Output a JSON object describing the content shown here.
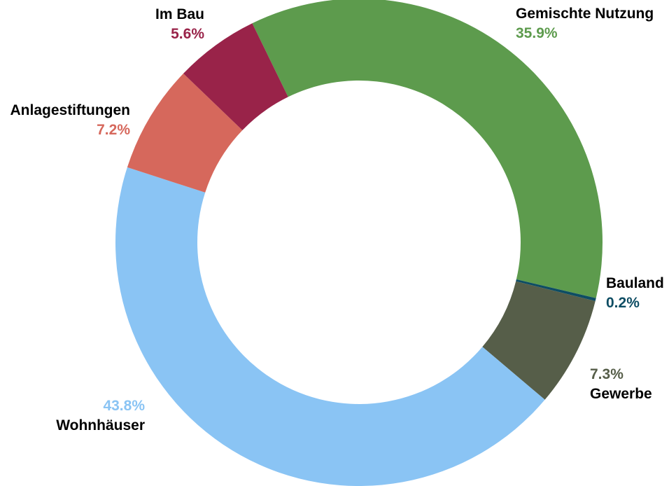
{
  "chart_data": {
    "type": "pie",
    "title": "",
    "legend": "none",
    "labels_position": "outside",
    "total": 100,
    "segments": [
      {
        "label": "Gemischte Nutzung",
        "value": 35.9,
        "pct_label": "35.9%",
        "color": "#5d9b4d"
      },
      {
        "label": "Bauland",
        "value": 0.2,
        "pct_label": "0.2%",
        "color": "#0e4d63"
      },
      {
        "label": "Gewerbe",
        "value": 7.3,
        "pct_label": "7.3%",
        "color": "#565e49"
      },
      {
        "label": "Wohnhäuser",
        "value": 43.8,
        "pct_label": "43.8%",
        "color": "#8ac4f4"
      },
      {
        "label": "Anlagestiftungen",
        "value": 7.2,
        "pct_label": "7.2%",
        "color": "#d6685c"
      },
      {
        "label": "Im Bau",
        "value": 5.6,
        "pct_label": "5.6%",
        "color": "#992349"
      }
    ],
    "layout": {
      "donut": true,
      "rotation_deg": -26,
      "clockwise": true,
      "center": [
        513,
        346
      ],
      "outer_radius": 348,
      "inner_radius": 231,
      "label_text_color": "#000000",
      "background": "#ffffff"
    }
  }
}
